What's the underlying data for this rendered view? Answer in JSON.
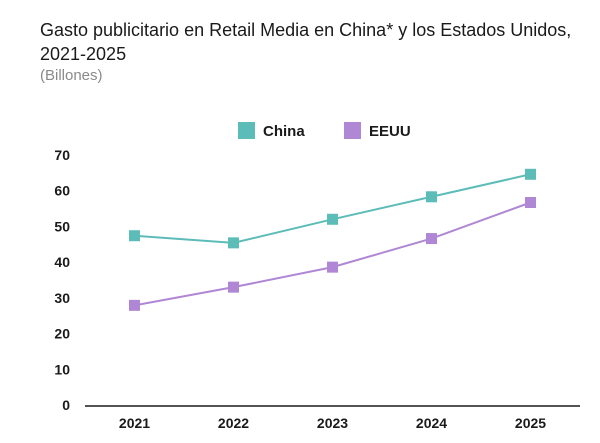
{
  "title": "Gasto publicitario en Retail Media en China* y los Estados Unidos, 2021-2025",
  "subtitle": "(Billones)",
  "colors": {
    "China": "#5cbcb8",
    "EEUU": "#b087d4",
    "axis": "#1a1a1a"
  },
  "chart_data": {
    "type": "line",
    "title": "Gasto publicitario en Retail Media en China* y los Estados Unidos, 2021-2025",
    "subtitle": "(Billones)",
    "categories": [
      "2021",
      "2022",
      "2023",
      "2024",
      "2025"
    ],
    "series": [
      {
        "name": "China",
        "values": [
          47.4,
          45.4,
          52.0,
          58.3,
          64.6
        ]
      },
      {
        "name": "EEUU",
        "values": [
          27.9,
          33.0,
          38.6,
          46.6,
          56.7
        ]
      }
    ],
    "yticks": [
      0,
      10,
      20,
      30,
      40,
      50,
      60,
      70
    ],
    "ylim": [
      0,
      70
    ],
    "grid": false,
    "legend": "top-center",
    "marker": "square"
  }
}
